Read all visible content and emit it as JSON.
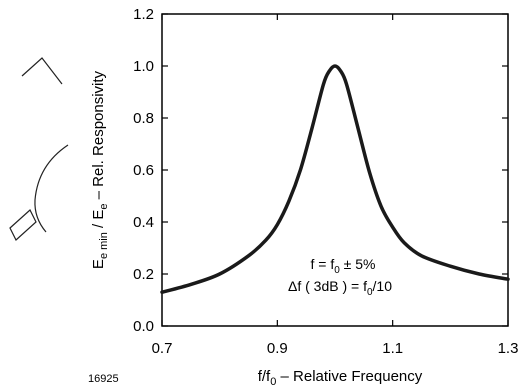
{
  "chart_data": {
    "type": "line",
    "title": "",
    "figure_number": "16925",
    "x_axis": {
      "label": "f/f",
      "label_sub": "0",
      "label_rest": " – Relative Frequency",
      "range": [
        0.7,
        1.3
      ],
      "ticks": [
        0.7,
        0.9,
        1.1,
        1.3
      ],
      "tick_labels": [
        "0.7",
        "0.9",
        "1.1",
        "1.3"
      ]
    },
    "y_axis": {
      "label_E1": "E",
      "label_sub1": "e min",
      "label_mid": " / E",
      "label_sub2": "e",
      "label_rest": " – Rel. Responsivity",
      "range": [
        0.0,
        1.2
      ],
      "ticks": [
        0.0,
        0.2,
        0.4,
        0.6,
        0.8,
        1.0,
        1.2
      ],
      "tick_labels": [
        "0.0",
        "0.2",
        "0.4",
        "0.6",
        "0.8",
        "1.0",
        "1.2"
      ]
    },
    "grid": false,
    "legend": "none",
    "series": [
      {
        "color": "#1a1a1a",
        "x": [
          0.7,
          0.75,
          0.8,
          0.85,
          0.88,
          0.9,
          0.92,
          0.94,
          0.96,
          0.98,
          0.99,
          1.0,
          1.01,
          1.02,
          1.04,
          1.06,
          1.08,
          1.1,
          1.12,
          1.15,
          1.2,
          1.25,
          1.3
        ],
        "y": [
          0.13,
          0.16,
          0.2,
          0.27,
          0.33,
          0.39,
          0.48,
          0.6,
          0.76,
          0.93,
          0.98,
          1.0,
          0.98,
          0.93,
          0.76,
          0.59,
          0.46,
          0.38,
          0.32,
          0.27,
          0.23,
          0.2,
          0.18
        ]
      }
    ],
    "annotations": [
      {
        "parts": [
          "f = f",
          "0",
          " ± 5%"
        ]
      },
      {
        "parts": [
          "Δf ( 3dB ) = f",
          "0",
          "/10"
        ]
      }
    ]
  },
  "style": {
    "curve_color": "#1a1a1a",
    "axis_color": "#000000"
  }
}
